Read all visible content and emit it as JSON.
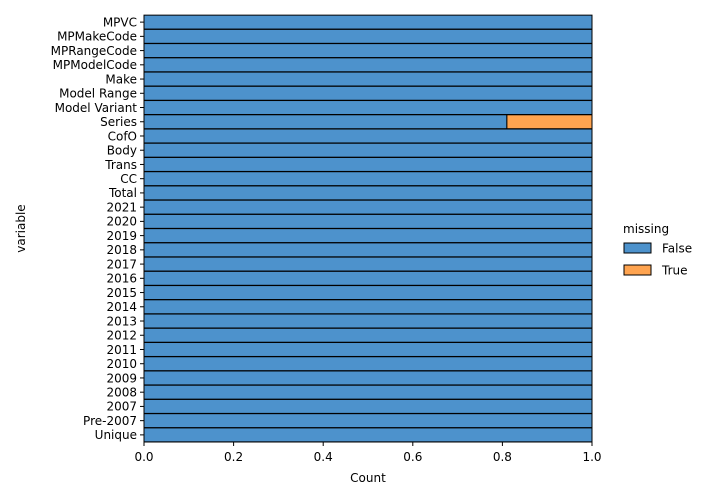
{
  "chart_data": {
    "type": "bar",
    "orientation": "horizontal",
    "stacked": true,
    "xlabel": "Count",
    "ylabel": "variable",
    "xlim": [
      0,
      1
    ],
    "xticks": [
      "0.0",
      "0.2",
      "0.4",
      "0.6",
      "0.8",
      "1.0"
    ],
    "grid": false,
    "legend": {
      "title": "missing",
      "placement": "right"
    },
    "categories": [
      "MPVC",
      "MPMakeCode",
      "MPRangeCode",
      "MPModelCode",
      "Make",
      "Model Range",
      "Model Variant",
      "Series",
      "CofO",
      "Body",
      "Trans",
      "CC",
      "Total",
      "2021",
      "2020",
      "2019",
      "2018",
      "2017",
      "2016",
      "2015",
      "2014",
      "2013",
      "2012",
      "2011",
      "2010",
      "2009",
      "2008",
      "2007",
      "Pre-2007",
      "Unique"
    ],
    "series": [
      {
        "name": "False",
        "color": "#3a86c6",
        "values": [
          1,
          1,
          1,
          1,
          1,
          1,
          1,
          0.81,
          1,
          1,
          1,
          1,
          1,
          1,
          1,
          1,
          1,
          1,
          1,
          1,
          1,
          1,
          1,
          1,
          1,
          1,
          1,
          1,
          1,
          1
        ]
      },
      {
        "name": "True",
        "color": "#ff9a3d",
        "values": [
          0,
          0,
          0,
          0,
          0,
          0,
          0,
          0.19,
          0,
          0,
          0,
          0,
          0,
          0,
          0,
          0,
          0,
          0,
          0,
          0,
          0,
          0,
          0,
          0,
          0,
          0,
          0,
          0,
          0,
          0
        ]
      }
    ]
  }
}
